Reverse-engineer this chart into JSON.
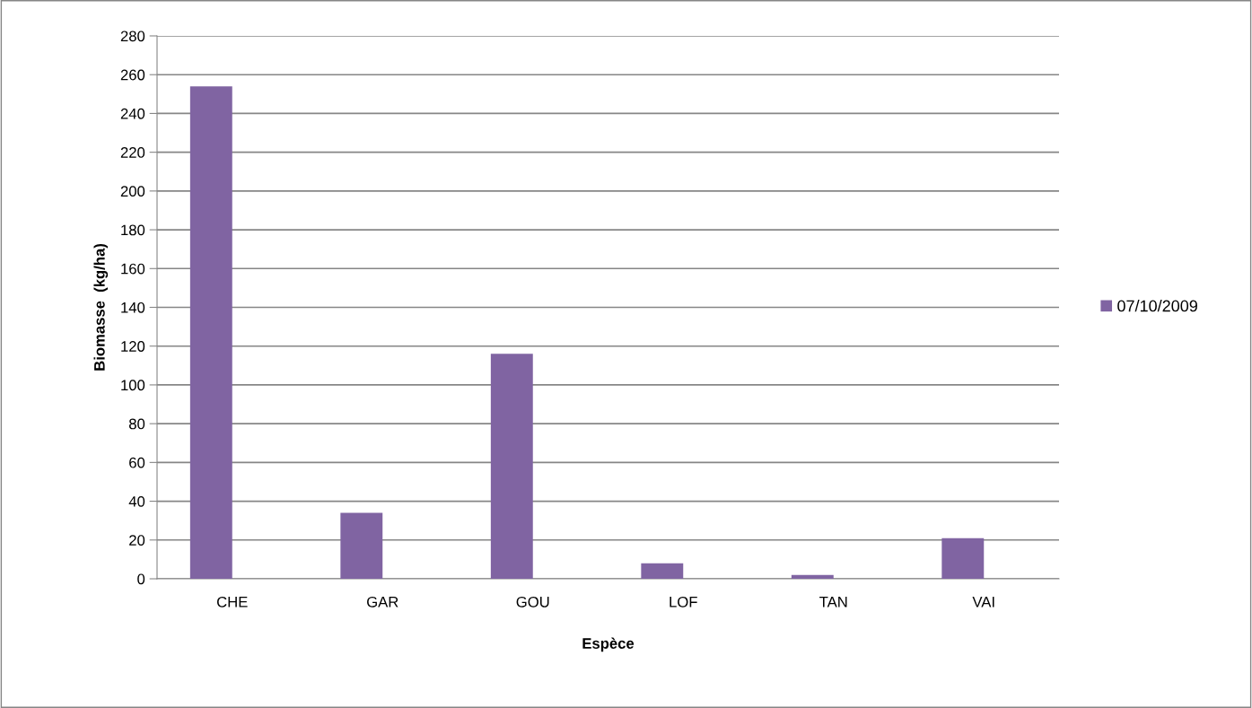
{
  "chart_data": {
    "type": "bar",
    "xlabel": "Espèce",
    "ylabel": "Biomasse  (kg/ha)",
    "categories": [
      "CHE",
      "GAR",
      "GOU",
      "LOF",
      "TAN",
      "VAI"
    ],
    "series": [
      {
        "name": "07/10/2009",
        "color": "#8064a2",
        "values": [
          254,
          34,
          116,
          8,
          2,
          21
        ]
      }
    ],
    "ylim": [
      0,
      280
    ],
    "yticks": [
      0,
      20,
      40,
      60,
      80,
      100,
      120,
      140,
      160,
      180,
      200,
      220,
      240,
      260,
      280
    ],
    "grid": "y",
    "legend": "right"
  }
}
